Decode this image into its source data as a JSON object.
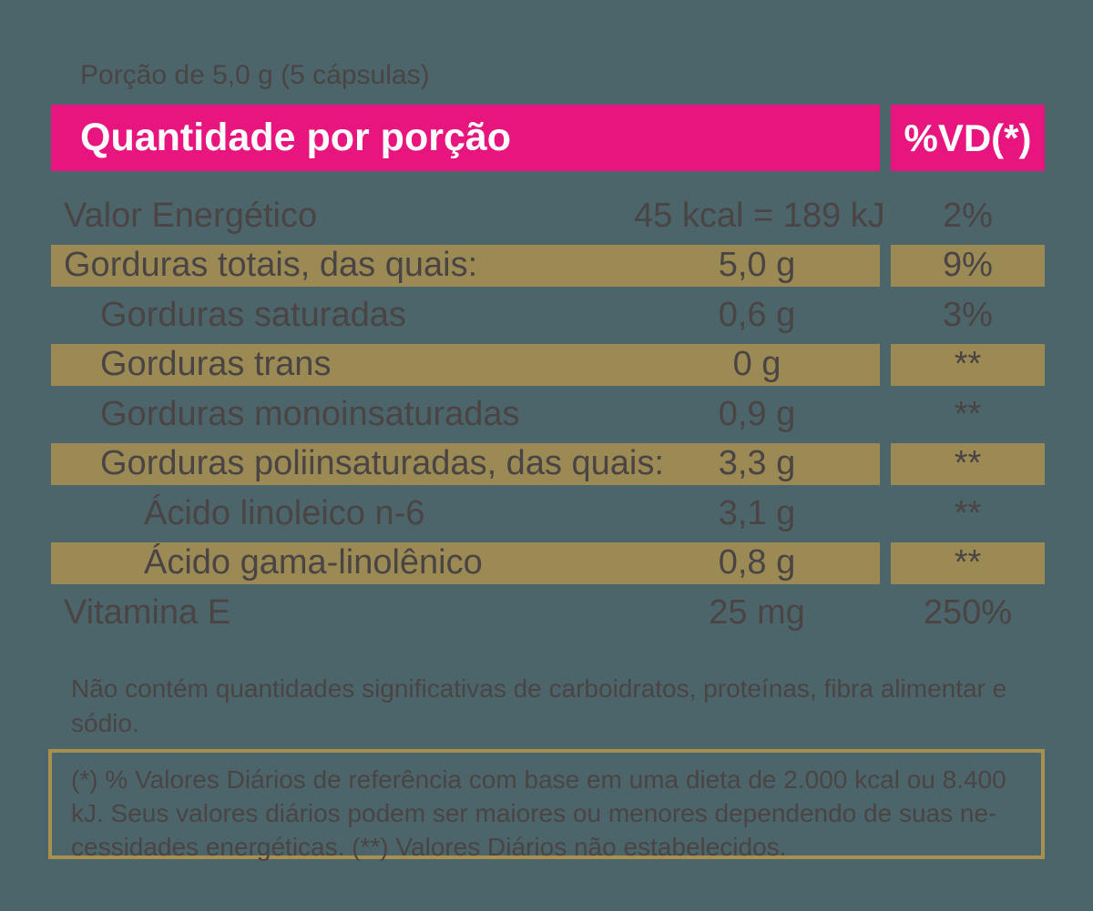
{
  "colors": {
    "background": "#4C656B",
    "header_pink": "#E8157E",
    "highlight_gold": "#9C8A55",
    "box_border_gold": "#A8904F",
    "text_dark": "#4A4444",
    "text_white": "#FFFFFF"
  },
  "serving": {
    "label": "Porção de 5,0 g (5 cápsulas)"
  },
  "header": {
    "quantity": "Quantidade por porção",
    "daily_value": "%VD(*)"
  },
  "rows": [
    {
      "label": "Valor Energético",
      "value": "45 kcal = 189 kJ",
      "dv": "2%",
      "highlight": false,
      "indent": 0
    },
    {
      "label": "Gorduras totais, das quais:",
      "value": "5,0 g",
      "dv": "9%",
      "highlight": true,
      "indent": 0
    },
    {
      "label": "Gorduras saturadas",
      "value": "0,6 g",
      "dv": "3%",
      "highlight": false,
      "indent": 1
    },
    {
      "label": "Gorduras trans",
      "value": "0 g",
      "dv": "**",
      "highlight": true,
      "indent": 1
    },
    {
      "label": "Gorduras monoinsaturadas",
      "value": "0,9 g",
      "dv": "**",
      "highlight": false,
      "indent": 1
    },
    {
      "label": "Gorduras poliinsaturadas, das quais:",
      "value": "3,3 g",
      "dv": "**",
      "highlight": true,
      "indent": 1
    },
    {
      "label": "Ácido linoleico n-6",
      "value": "3,1 g",
      "dv": "**",
      "highlight": false,
      "indent": 2
    },
    {
      "label": "Ácido gama-linolênico",
      "value": "0,8 g",
      "dv": "**",
      "highlight": true,
      "indent": 2
    },
    {
      "label": "Vitamina E",
      "value": "25 mg",
      "dv": "250%",
      "highlight": false,
      "indent": 0
    }
  ],
  "notes": {
    "no_significant_line1": "Não contém quantidades significativas de carboidratos, proteínas, fibra alimentar e",
    "no_significant_line2": "sódio.",
    "dv_reference_line1": "(*) % Valores Diários de referência com base em uma dieta de 2.000 kcal ou 8.400",
    "dv_reference_line2": "kJ. Seus valores diários podem ser maiores ou menores dependendo de suas ne-",
    "dv_reference_line3": "cessidades energéticas. (**) Valores Diários não estabelecidos."
  }
}
